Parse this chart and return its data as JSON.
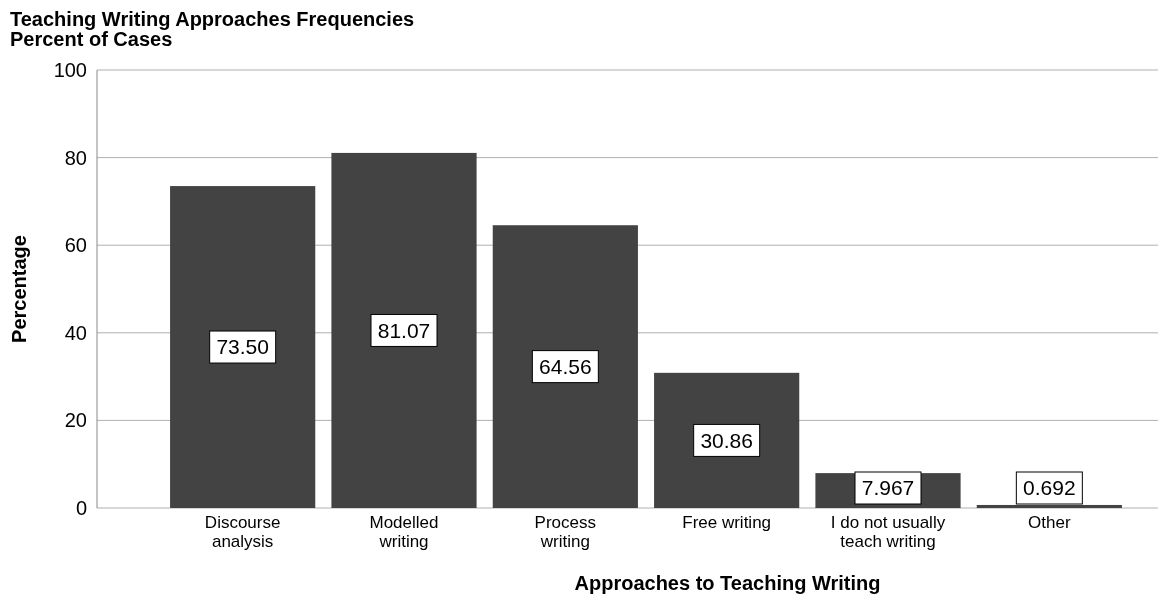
{
  "chart_data": {
    "type": "bar",
    "title": "Teaching Writing Approaches Frequencies",
    "subtitle": "Percent of Cases",
    "xlabel": "Approaches to Teaching Writing",
    "ylabel": "Percentage",
    "categories": [
      "Discourse analysis",
      "Modelled writing",
      "Process writing",
      "Free writing",
      "I do not usually teach writing",
      "Other"
    ],
    "values": [
      73.5,
      81.07,
      64.56,
      30.86,
      7.967,
      0.692
    ],
    "value_labels": [
      "73.50",
      "81.07",
      "64.56",
      "30.86",
      "7.967",
      "0.692"
    ],
    "color": "#434343",
    "ylim": [
      0,
      100
    ],
    "yticks": [
      0,
      20,
      40,
      60,
      80,
      100
    ],
    "grid": "y"
  }
}
